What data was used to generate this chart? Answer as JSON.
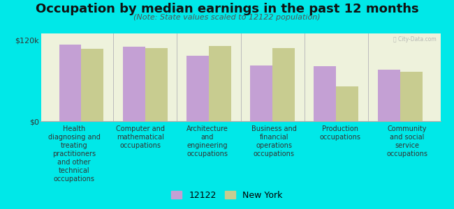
{
  "title": "Occupation by median earnings in the past 12 months",
  "subtitle": "(Note: State values scaled to 12122 population)",
  "background_color": "#00e8e8",
  "plot_bg_color": "#eef2dc",
  "categories": [
    "Health\ndiagnosing and\ntreating\npractitioners\nand other\ntechnical\noccupations",
    "Computer and\nmathematical\noccupations",
    "Architecture\nand\nengineering\noccupations",
    "Business and\nfinancial\noperations\noccupations",
    "Production\noccupations",
    "Community\nand social\nservice\noccupations"
  ],
  "values_12122": [
    113000,
    110000,
    97000,
    83000,
    82000,
    76000
  ],
  "values_ny": [
    107000,
    108000,
    111000,
    108000,
    52000,
    73000
  ],
  "color_12122": "#c4a0d4",
  "color_ny": "#c8cc90",
  "ylim": [
    0,
    130000
  ],
  "yticks": [
    0,
    120000
  ],
  "ytick_labels": [
    "$0",
    "$120k"
  ],
  "legend_labels": [
    "12122",
    "New York"
  ],
  "bar_width": 0.35,
  "watermark": "Ⓜ City-Data.com",
  "title_fontsize": 13,
  "subtitle_fontsize": 8,
  "label_fontsize": 7
}
